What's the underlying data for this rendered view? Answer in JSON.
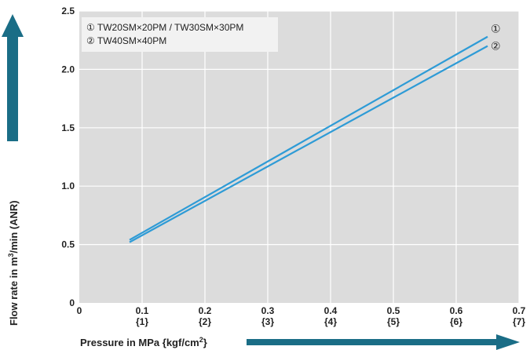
{
  "chart_data": {
    "type": "line",
    "xlim": [
      0,
      0.7
    ],
    "ylim": [
      0,
      2.5
    ],
    "x_ticks": [
      {
        "value": 0,
        "label": "0",
        "sub": ""
      },
      {
        "value": 0.1,
        "label": "0.1",
        "sub": "{1}"
      },
      {
        "value": 0.2,
        "label": "0.2",
        "sub": "{2}"
      },
      {
        "value": 0.3,
        "label": "0.3",
        "sub": "{3}"
      },
      {
        "value": 0.4,
        "label": "0.4",
        "sub": "{4}"
      },
      {
        "value": 0.5,
        "label": "0.5",
        "sub": "{5}"
      },
      {
        "value": 0.6,
        "label": "0.6",
        "sub": "{6}"
      },
      {
        "value": 0.7,
        "label": "0.7",
        "sub": "{7}"
      }
    ],
    "y_ticks": [
      {
        "value": 0,
        "label": "0"
      },
      {
        "value": 0.5,
        "label": "0.5"
      },
      {
        "value": 1.0,
        "label": "1.0"
      },
      {
        "value": 1.5,
        "label": "1.5"
      },
      {
        "value": 2.0,
        "label": "2.0"
      },
      {
        "value": 2.5,
        "label": "2.5"
      }
    ],
    "grid": true,
    "xlabel": {
      "main": "Pressure in MPa {kgf/cm",
      "sup": "2",
      "end": "}"
    },
    "ylabel": {
      "main": "Flow rate in m",
      "sup": "3",
      "end": "/min (ANR)"
    },
    "legend": {
      "placement": "top-left",
      "entries": [
        "① TW20SM×20PM / TW30SM×30PM",
        "② TW40SM×40PM"
      ]
    },
    "series": [
      {
        "name": "①",
        "color": "#2e9bd6",
        "x": [
          0.08,
          0.65
        ],
        "y": [
          0.54,
          2.28
        ]
      },
      {
        "name": "②",
        "color": "#2e9bd6",
        "x": [
          0.08,
          0.65
        ],
        "y": [
          0.52,
          2.2
        ]
      }
    ]
  },
  "colors": {
    "plot_bg": "#dcdcdc",
    "grid": "#ffffff",
    "arrow": "#1a6d86",
    "line": "#2e9bd6"
  }
}
